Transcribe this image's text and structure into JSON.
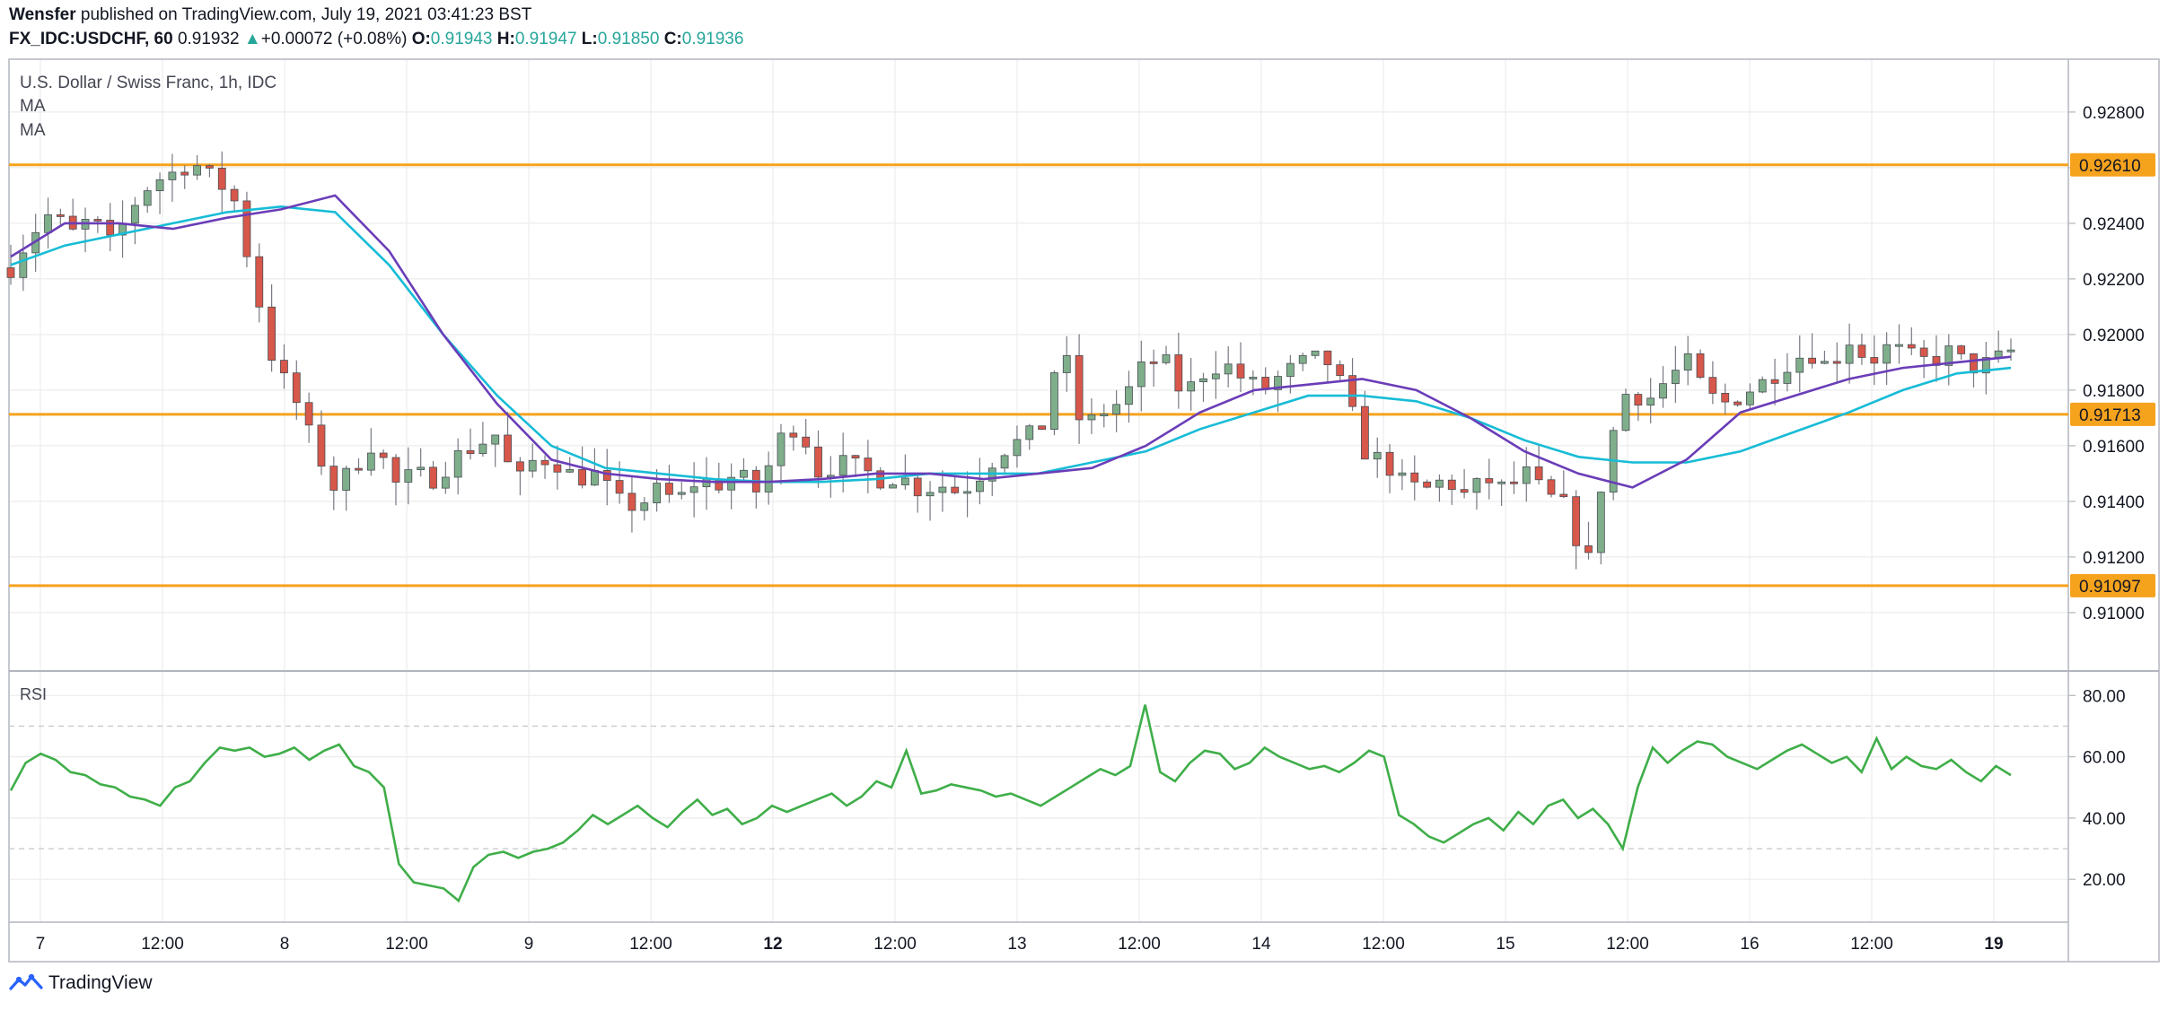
{
  "header": {
    "author": "Wensfer",
    "published_text": "published on TradingView.com, July 19, 2021 03:41:23 BST",
    "symbol": "FX_IDC:USDCHF, 60",
    "last": "0.91932",
    "change_arrow": "▲",
    "change": "+0.00072 (+0.08%)",
    "o_label": "O:",
    "o_value": "0.91943",
    "h_label": "H:",
    "h_value": "0.91947",
    "l_label": "L:",
    "l_value": "0.91850",
    "c_label": "C:",
    "c_value": "0.91936"
  },
  "overlay": {
    "title": "U.S. Dollar / Swiss Franc, 1h, IDC",
    "ma1": "MA",
    "ma2": "MA"
  },
  "rsi_label": "RSI",
  "footer": {
    "brand": "TradingView",
    "logo_icon": "tradingview-logo-icon"
  },
  "colors": {
    "up": "#26a69a",
    "up_fill": "#7fae8b",
    "down": "#d7574a",
    "ma_fast": "#6a3db8",
    "ma_slow": "#17bcd6",
    "level": "#f5a21d",
    "rsi": "#3fae49",
    "grid": "#ececec"
  },
  "chart_data": [
    {
      "type": "candlestick",
      "title": "U.S. Dollar / Swiss Franc, 1h, IDC",
      "x_tick_labels": [
        "7",
        "12:00",
        "8",
        "12:00",
        "9",
        "12:00",
        "12",
        "12:00",
        "13",
        "12:00",
        "14",
        "12:00",
        "15",
        "12:00",
        "16",
        "12:00",
        "19"
      ],
      "x_ticks_bold": [
        "12",
        "19"
      ],
      "y_ticks": [
        0.91,
        0.912,
        0.914,
        0.916,
        0.918,
        0.92,
        0.922,
        0.924,
        0.926,
        0.928
      ],
      "y_tick_labels": [
        "0.91000",
        "0.91200",
        "0.91400",
        "0.91600",
        "0.91800",
        "0.92000",
        "0.92200",
        "0.92400",
        "0.92600",
        "0.92800"
      ],
      "ylim": [
        0.9079,
        0.9299
      ],
      "levels": [
        {
          "value": 0.9261,
          "label": "0.92610"
        },
        {
          "value": 0.91713,
          "label": "0.91713"
        },
        {
          "value": 0.91097,
          "label": "0.91097"
        }
      ],
      "path_points": [
        0.9224,
        0.9236,
        0.9244,
        0.9236,
        0.9242,
        0.9232,
        0.9246,
        0.9255,
        0.9258,
        0.9262,
        0.9256,
        0.925,
        0.922,
        0.919,
        0.9178,
        0.916,
        0.9145,
        0.9152,
        0.9162,
        0.9146,
        0.915,
        0.9148,
        0.9156,
        0.916,
        0.9164,
        0.9146,
        0.9156,
        0.9154,
        0.9148,
        0.915,
        0.914,
        0.9138,
        0.9144,
        0.914,
        0.9148,
        0.9146,
        0.915,
        0.9143,
        0.9162,
        0.9168,
        0.915,
        0.9154,
        0.9152,
        0.9148,
        0.9149,
        0.9144,
        0.9146,
        0.9143,
        0.915,
        0.9158,
        0.9162,
        0.9166,
        0.9198,
        0.9166,
        0.9172,
        0.9176,
        0.9188,
        0.9192,
        0.9178,
        0.9186,
        0.919,
        0.9184,
        0.918,
        0.9186,
        0.919,
        0.9192,
        0.918,
        0.9158,
        0.9154,
        0.9146,
        0.9144,
        0.9148,
        0.9142,
        0.9148,
        0.9144,
        0.915,
        0.9142,
        0.9138,
        0.9115,
        0.9158,
        0.918,
        0.9176,
        0.9184,
        0.919,
        0.9178,
        0.9175,
        0.918,
        0.9184,
        0.919,
        0.9194,
        0.9188,
        0.9198,
        0.919,
        0.9196,
        0.9192,
        0.919,
        0.9194,
        0.9188,
        0.919,
        0.9194
      ],
      "ma_fast": [
        0.9228,
        0.924,
        0.924,
        0.9238,
        0.9242,
        0.9245,
        0.925,
        0.923,
        0.92,
        0.9175,
        0.9155,
        0.915,
        0.9148,
        0.9147,
        0.9147,
        0.9148,
        0.915,
        0.915,
        0.9148,
        0.915,
        0.9152,
        0.916,
        0.9172,
        0.918,
        0.9182,
        0.9184,
        0.918,
        0.917,
        0.9158,
        0.915,
        0.9145,
        0.9155,
        0.9172,
        0.9178,
        0.9184,
        0.9188,
        0.919,
        0.9192
      ],
      "ma_slow": [
        0.9225,
        0.9232,
        0.9236,
        0.924,
        0.9244,
        0.9246,
        0.9244,
        0.9225,
        0.92,
        0.9178,
        0.916,
        0.9152,
        0.915,
        0.9148,
        0.9147,
        0.9147,
        0.9148,
        0.915,
        0.915,
        0.915,
        0.9154,
        0.9158,
        0.9166,
        0.9172,
        0.9178,
        0.9178,
        0.9176,
        0.917,
        0.9162,
        0.9156,
        0.9154,
        0.9154,
        0.9158,
        0.9165,
        0.9172,
        0.918,
        0.9186,
        0.9188
      ],
      "last_value": 0.91932
    },
    {
      "type": "line",
      "title": "RSI",
      "y_ticks": [
        20,
        40,
        60,
        80
      ],
      "y_tick_labels": [
        "20.00",
        "40.00",
        "60.00",
        "80.00"
      ],
      "dashed_levels": [
        30,
        70
      ],
      "ylim": [
        6,
        88
      ],
      "values": [
        49,
        58,
        61,
        59,
        55,
        54,
        51,
        50,
        47,
        46,
        44,
        50,
        52,
        58,
        63,
        62,
        63,
        60,
        61,
        63,
        59,
        62,
        64,
        57,
        55,
        50,
        25,
        19,
        18,
        17,
        13,
        24,
        28,
        29,
        27,
        29,
        30,
        32,
        36,
        41,
        38,
        41,
        44,
        40,
        37,
        42,
        46,
        41,
        43,
        38,
        40,
        44,
        42,
        44,
        46,
        48,
        44,
        47,
        52,
        50,
        62,
        48,
        49,
        51,
        50,
        49,
        47,
        48,
        46,
        44,
        47,
        50,
        53,
        56,
        54,
        57,
        77,
        55,
        52,
        58,
        62,
        61,
        56,
        58,
        63,
        60,
        58,
        56,
        57,
        55,
        58,
        62,
        60,
        41,
        38,
        34,
        32,
        35,
        38,
        40,
        36,
        42,
        38,
        44,
        46,
        40,
        43,
        38,
        30,
        50,
        63,
        58,
        62,
        65,
        64,
        60,
        58,
        56,
        59,
        62,
        64,
        61,
        58,
        60,
        55,
        66,
        56,
        60,
        57,
        56,
        59,
        55,
        52,
        57,
        54
      ]
    }
  ]
}
